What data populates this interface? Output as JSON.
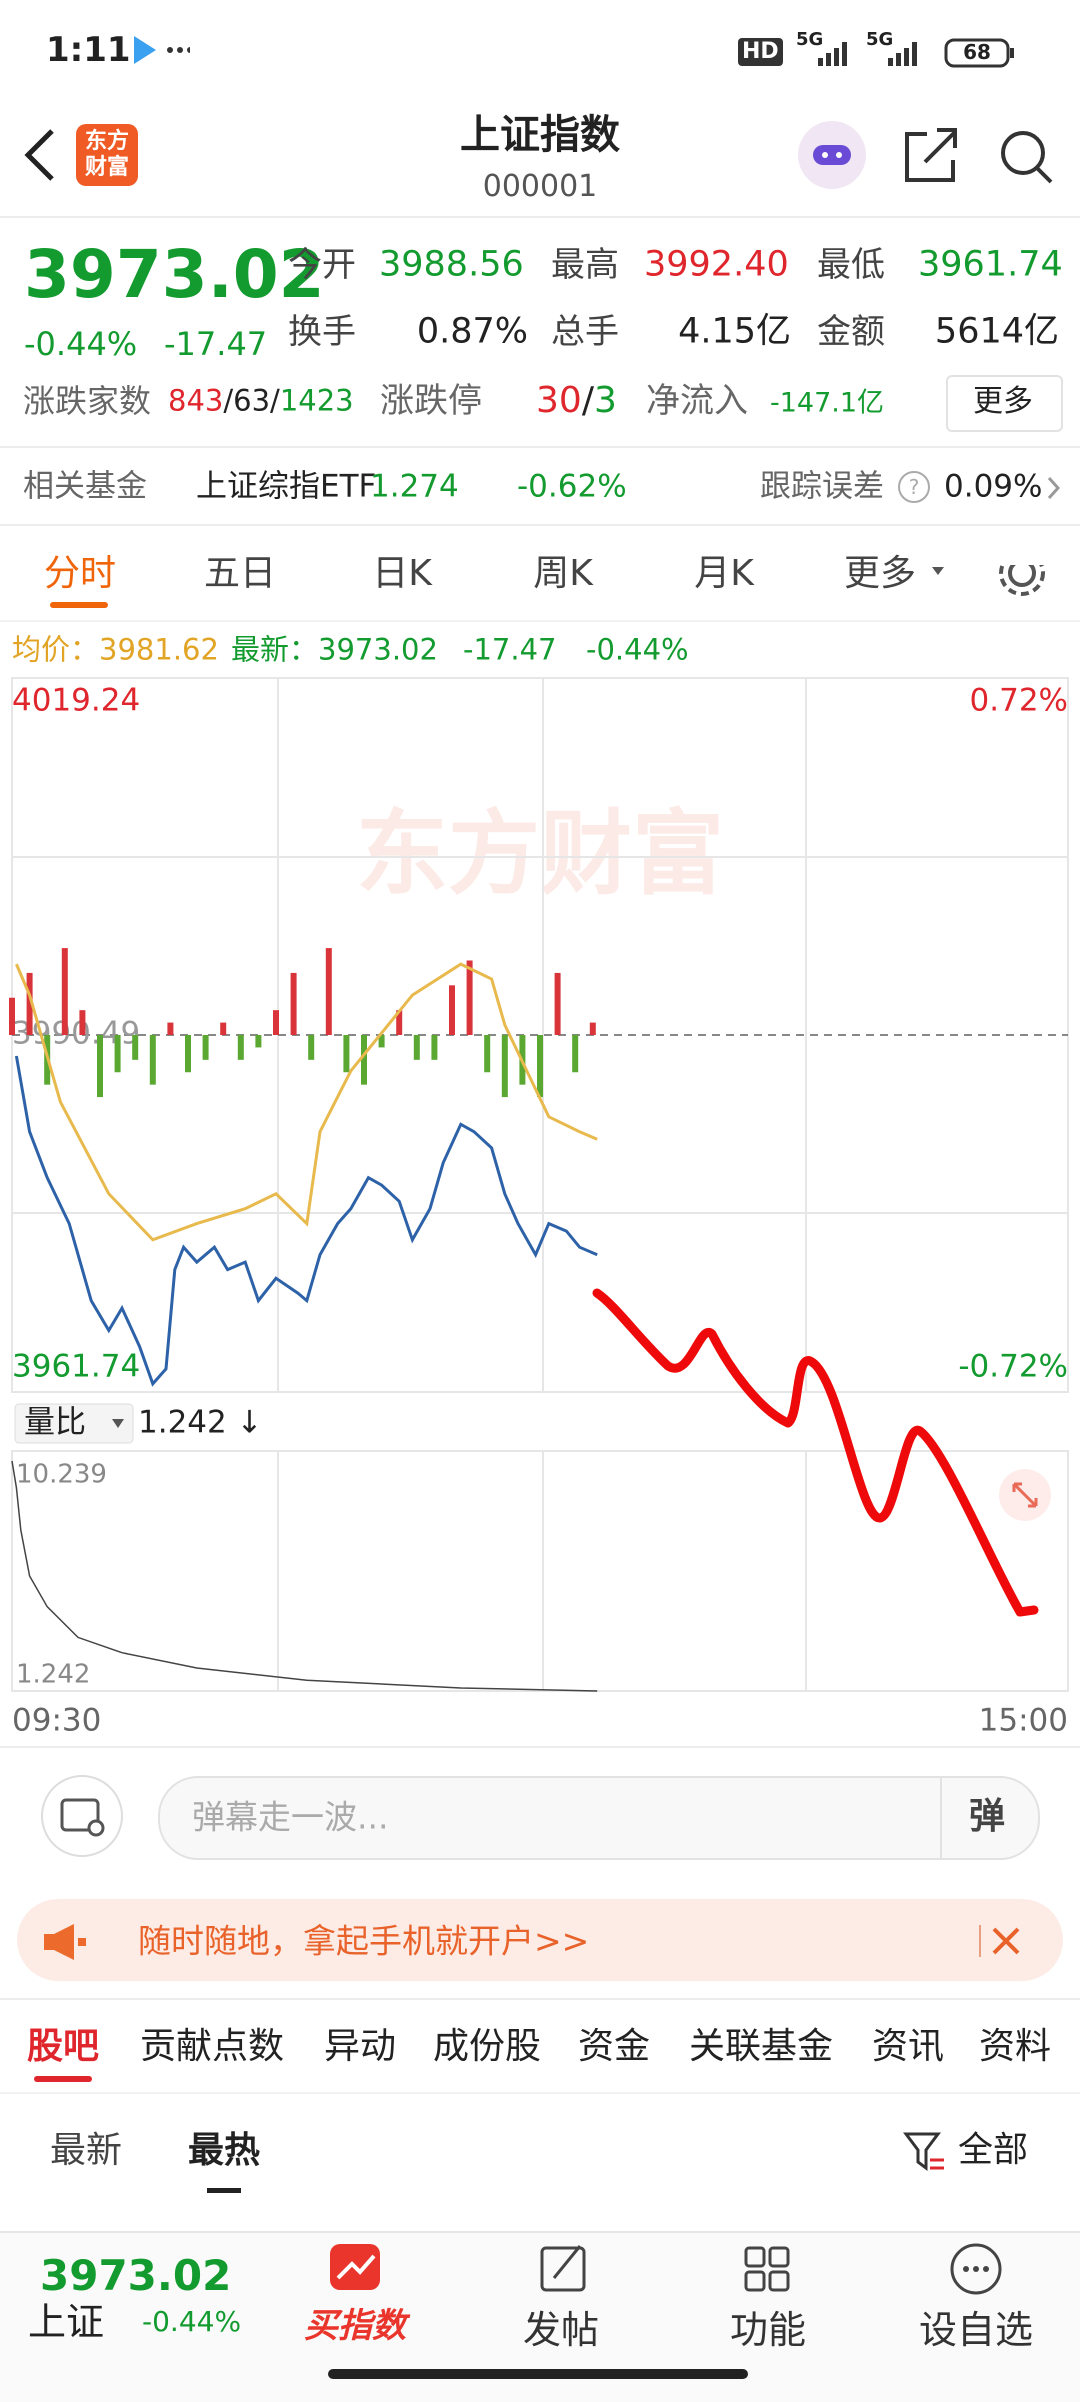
{
  "status_bar": {
    "time": "1:11",
    "hd": "HD",
    "network": "5G",
    "battery": "68"
  },
  "header": {
    "title": "上证指数",
    "code": "000001",
    "logo_top": "东方",
    "logo_bottom": "财富"
  },
  "quote": {
    "price": "3973.02",
    "change_pct": "-0.44%",
    "change": "-17.47",
    "stats": [
      {
        "label": "今开",
        "value": "3988.56"
      },
      {
        "label": "最高",
        "value": "3992.40"
      },
      {
        "label": "最低",
        "value": "3961.74"
      },
      {
        "label": "换手",
        "value": "0.87%"
      },
      {
        "label": "总手",
        "value": "4.15亿"
      },
      {
        "label": "金额",
        "value": "5614亿"
      }
    ],
    "breadth": {
      "label": "涨跌家数",
      "up": "843",
      "sep": "/",
      "flat": "63",
      "down": "1423"
    },
    "limit": {
      "label": "涨跌停",
      "up": "30",
      "down": "3"
    },
    "net_inflow": {
      "label": "净流入",
      "value": "-147.1亿"
    },
    "more": "更多"
  },
  "fund": {
    "label": "相关基金",
    "name": "上证综指ETF",
    "price": "1.274",
    "change": "-0.62%",
    "error_label": "跟踪误差",
    "help": "?",
    "error": "0.09%"
  },
  "chart_tabs": [
    "分时",
    "五日",
    "日K",
    "周K",
    "月K",
    "更多"
  ],
  "info": {
    "avg_label": "均价：",
    "avg": "3981.62",
    "last_label": "最新：",
    "last": "3973.02",
    "change": "-17.47",
    "pct": "-0.44%"
  },
  "watermark": "东方财富",
  "chart_data": [
    {
      "type": "line",
      "xlim": [
        0,
        240
      ],
      "xticks": [
        {
          "value": 0,
          "label": "09:30"
        },
        {
          "value": 240,
          "label": "15:00"
        }
      ],
      "ylim": [
        3961.74,
        4019.24
      ],
      "yticks": [
        3961.74,
        3990.49,
        4019.24
      ],
      "y2lim": [
        -0.72,
        0.72
      ],
      "y2ticks": [
        {
          "value": -0.72,
          "label": "-0.72%"
        },
        {
          "value": 0.72,
          "label": "0.72%"
        }
      ],
      "series": [
        {
          "color": "#2e62a8",
          "x": [
            1,
            4,
            8,
            13,
            18,
            22,
            25,
            29,
            32,
            35,
            37,
            39,
            42,
            46,
            49,
            53,
            56,
            60,
            65,
            67,
            70,
            74,
            77,
            81,
            84,
            88,
            91,
            95,
            98,
            102,
            105,
            109,
            112,
            115,
            119,
            122,
            126,
            129,
            133
          ],
          "values": [
            3988.8,
            3982.7,
            3979.0,
            3975.3,
            3969.1,
            3966.7,
            3968.5,
            3965.4,
            3962.4,
            3963.6,
            3971.6,
            3973.4,
            3972.2,
            3973.4,
            3971.6,
            3972.2,
            3969.1,
            3970.9,
            3969.7,
            3969.1,
            3972.8,
            3975.3,
            3976.5,
            3979.0,
            3978.4,
            3977.1,
            3974.0,
            3976.5,
            3980.2,
            3983.3,
            3982.7,
            3981.4,
            3977.7,
            3975.3,
            3972.8,
            3975.3,
            3974.7,
            3973.4,
            3972.8
          ]
        },
        {
          "color": "#e8b94c",
          "x": [
            1,
            4,
            11,
            22,
            32,
            42,
            53,
            60,
            67,
            70,
            77,
            91,
            102,
            109,
            112,
            117,
            122,
            129,
            133
          ],
          "values": [
            3996.2,
            3993.7,
            3985.1,
            3977.7,
            3974.0,
            3975.3,
            3976.5,
            3977.7,
            3975.3,
            3982.7,
            3987.6,
            3993.7,
            3996.2,
            3995.0,
            3991.3,
            3987.6,
            3983.9,
            3982.7,
            3982.1
          ]
        }
      ],
      "volume_bars": {
        "up_color": "#d9343a",
        "down_color": "#5aa832",
        "x": [
          0,
          4,
          8,
          12,
          16,
          20,
          24,
          28,
          32,
          36,
          40,
          44,
          48,
          52,
          56,
          60,
          64,
          68,
          72,
          76,
          80,
          84,
          88,
          92,
          96,
          100,
          104,
          108,
          112,
          116,
          120,
          124,
          128,
          132
        ],
        "values": [
          3,
          5,
          -4,
          7,
          2,
          -5,
          -3,
          -2,
          -4,
          1,
          -3,
          -2,
          1,
          -2,
          -1,
          2,
          5,
          -2,
          7,
          -3,
          -4,
          -1,
          2,
          -2,
          -2,
          4,
          6,
          -3,
          -5,
          -4,
          -5,
          5,
          -3,
          1
        ]
      }
    },
    {
      "type": "line",
      "label": "量比",
      "value": "1.242",
      "trend": "↓",
      "xlim": [
        0,
        240
      ],
      "ylim": [
        1.242,
        10.239
      ],
      "yticks": [
        1.242,
        10.239
      ],
      "series": [
        {
          "color": "#444444",
          "x": [
            0,
            1,
            2,
            4,
            8,
            15,
            25,
            42,
            67,
            102,
            133
          ],
          "values": [
            10.239,
            9.2,
            7.54,
            5.74,
            4.54,
            3.34,
            2.74,
            2.14,
            1.66,
            1.36,
            1.242
          ]
        }
      ]
    }
  ],
  "comment": {
    "placeholder": "弹幕走一波...",
    "button": "弹"
  },
  "banner": {
    "text": "随时随地，拿起手机就开户>>"
  },
  "content_tabs": [
    "股吧",
    "贡献点数",
    "异动",
    "成份股",
    "资金",
    "关联基金",
    "资讯",
    "资料"
  ],
  "sort_tabs": {
    "latest": "最新",
    "hot": "最热",
    "filter": "全部"
  },
  "bottom_bar": {
    "price": "3973.02",
    "name": "上证",
    "pct": "-0.44%",
    "buy": "买指数",
    "post": "发帖",
    "func": "功能",
    "watch": "设自选"
  }
}
